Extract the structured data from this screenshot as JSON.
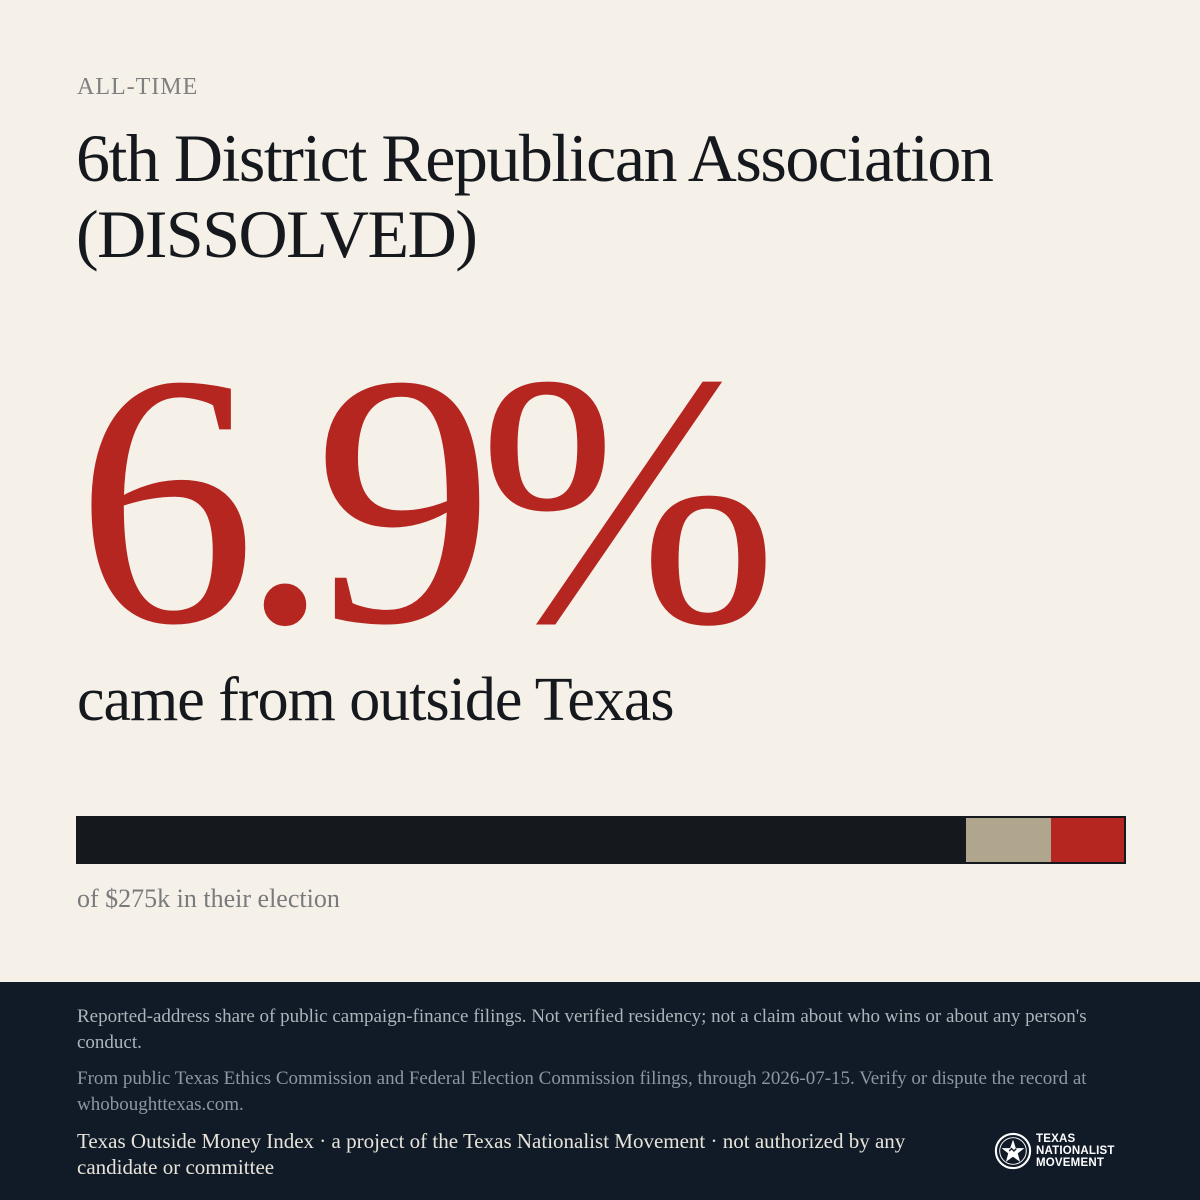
{
  "kicker": "ALL-TIME",
  "title": "6th District Republican Association (DISSOLVED)",
  "headline_percent": "6.9%",
  "headline_subtitle": "came from outside Texas",
  "share_bar": {
    "segments": [
      {
        "id": "in-texas",
        "fraction": 0.845,
        "color": "#15181d"
      },
      {
        "id": "unknown",
        "fraction": 0.081,
        "color": "#b0a58d"
      },
      {
        "id": "outside-texas",
        "fraction": 0.069,
        "color": "#b52620"
      }
    ]
  },
  "bar_caption": "of $275k in their election",
  "footer": {
    "disclaimer": "Reported-address share of public campaign-finance filings. Not verified residency; not a claim about who wins or about any person's conduct.",
    "source": "From public Texas Ethics Commission and Federal Election Commission filings, through 2026-07-15. Verify or dispute the record at whoboughttexas.com.",
    "credit": "Texas Outside Money Index · a project of the Texas Nationalist Movement · not authorized by any candidate or committee",
    "logo": {
      "icon": "tnm-star-seal-icon",
      "line1": "TEXAS",
      "line2": "NATIONALIST",
      "line3": "MOVEMENT"
    }
  },
  "colors": {
    "background": "#f5f0e8",
    "accent_red": "#b52620",
    "ink": "#15181d",
    "footer_bg": "#111b27"
  }
}
